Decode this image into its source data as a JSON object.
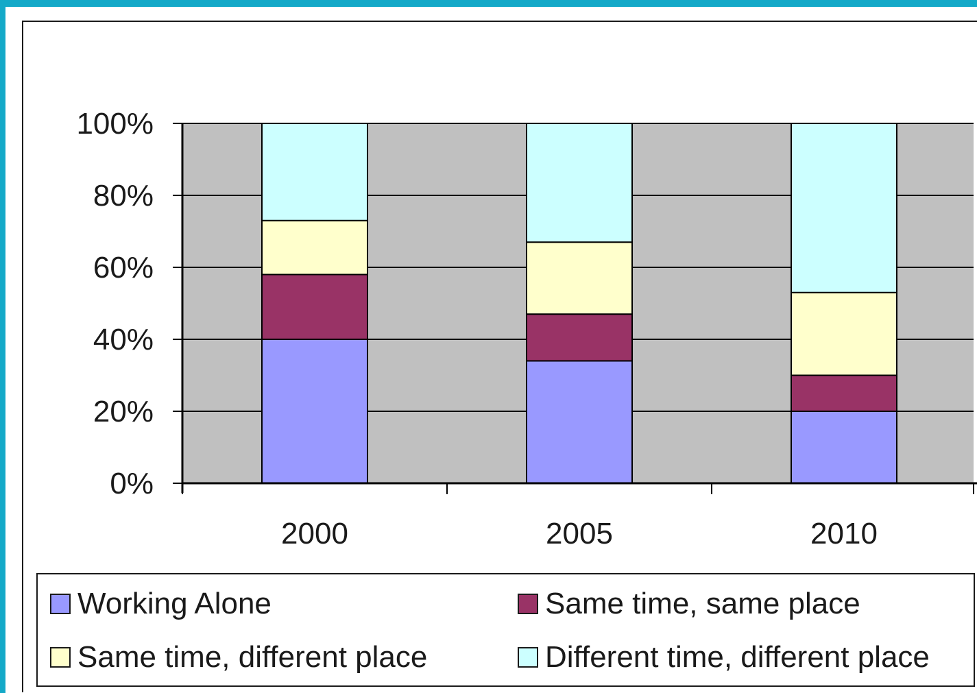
{
  "chart_data": {
    "type": "bar",
    "stacked": true,
    "categories": [
      "2000",
      "2005",
      "2010"
    ],
    "series": [
      {
        "name": "Working Alone",
        "color": "#9999ff",
        "values": [
          40,
          34,
          20
        ]
      },
      {
        "name": "Same time, same place",
        "color": "#993366",
        "values": [
          18,
          13,
          10
        ]
      },
      {
        "name": "Same time, different place",
        "color": "#ffffcc",
        "values": [
          15,
          20,
          23
        ]
      },
      {
        "name": "Different time, different place",
        "color": "#ccffff",
        "values": [
          27,
          33,
          47
        ]
      }
    ],
    "ylim": [
      0,
      100
    ],
    "yticks": [
      "0%",
      "20%",
      "40%",
      "60%",
      "80%",
      "100%"
    ],
    "grid": true,
    "plot_background": "#c0c0c0",
    "legend_position": "bottom"
  }
}
